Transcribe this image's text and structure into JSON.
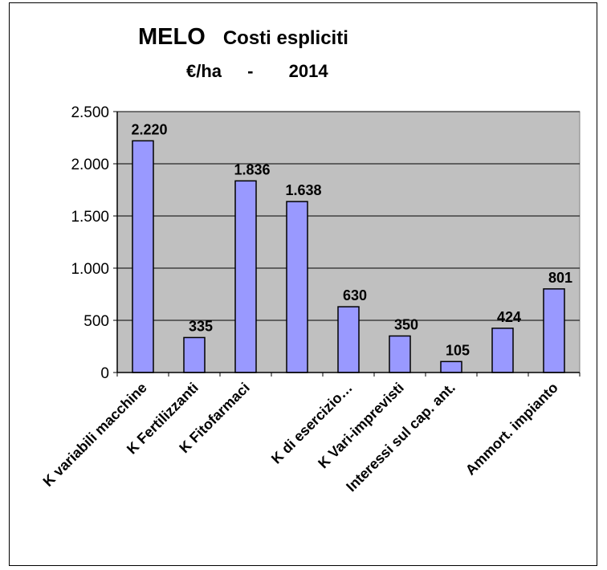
{
  "chart_data": {
    "type": "bar",
    "title_main": "MELO",
    "title_rest": "Costi  espliciti",
    "subtitle_unit": "€/ha",
    "subtitle_sep": "-",
    "subtitle_year": "2014",
    "categories": [
      "K variabili macchine",
      "K  Fertilizzanti",
      "K Fitofarmaci",
      "",
      "K di esercizio…",
      "K Vari-imprevisti",
      "Interessi sul cap. ant.",
      "",
      "Ammort. impianto"
    ],
    "values": [
      2220,
      335,
      1836,
      1638,
      630,
      350,
      105,
      424,
      801
    ],
    "value_labels": [
      "2.220",
      "335",
      "1.836",
      "1.638",
      "630",
      "350",
      "105",
      "424",
      "801"
    ],
    "yticks": [
      0,
      500,
      1000,
      1500,
      2000,
      2500
    ],
    "ytick_labels": [
      "0",
      "500",
      "1.000",
      "1.500",
      "2.000",
      "2.500"
    ],
    "ylim": [
      0,
      2500
    ],
    "grid": true,
    "colors": {
      "bar_fill": "#9999ff",
      "bar_stroke": "#000000",
      "plot_bg": "#c0c0c0",
      "gridline": "#000000"
    }
  }
}
